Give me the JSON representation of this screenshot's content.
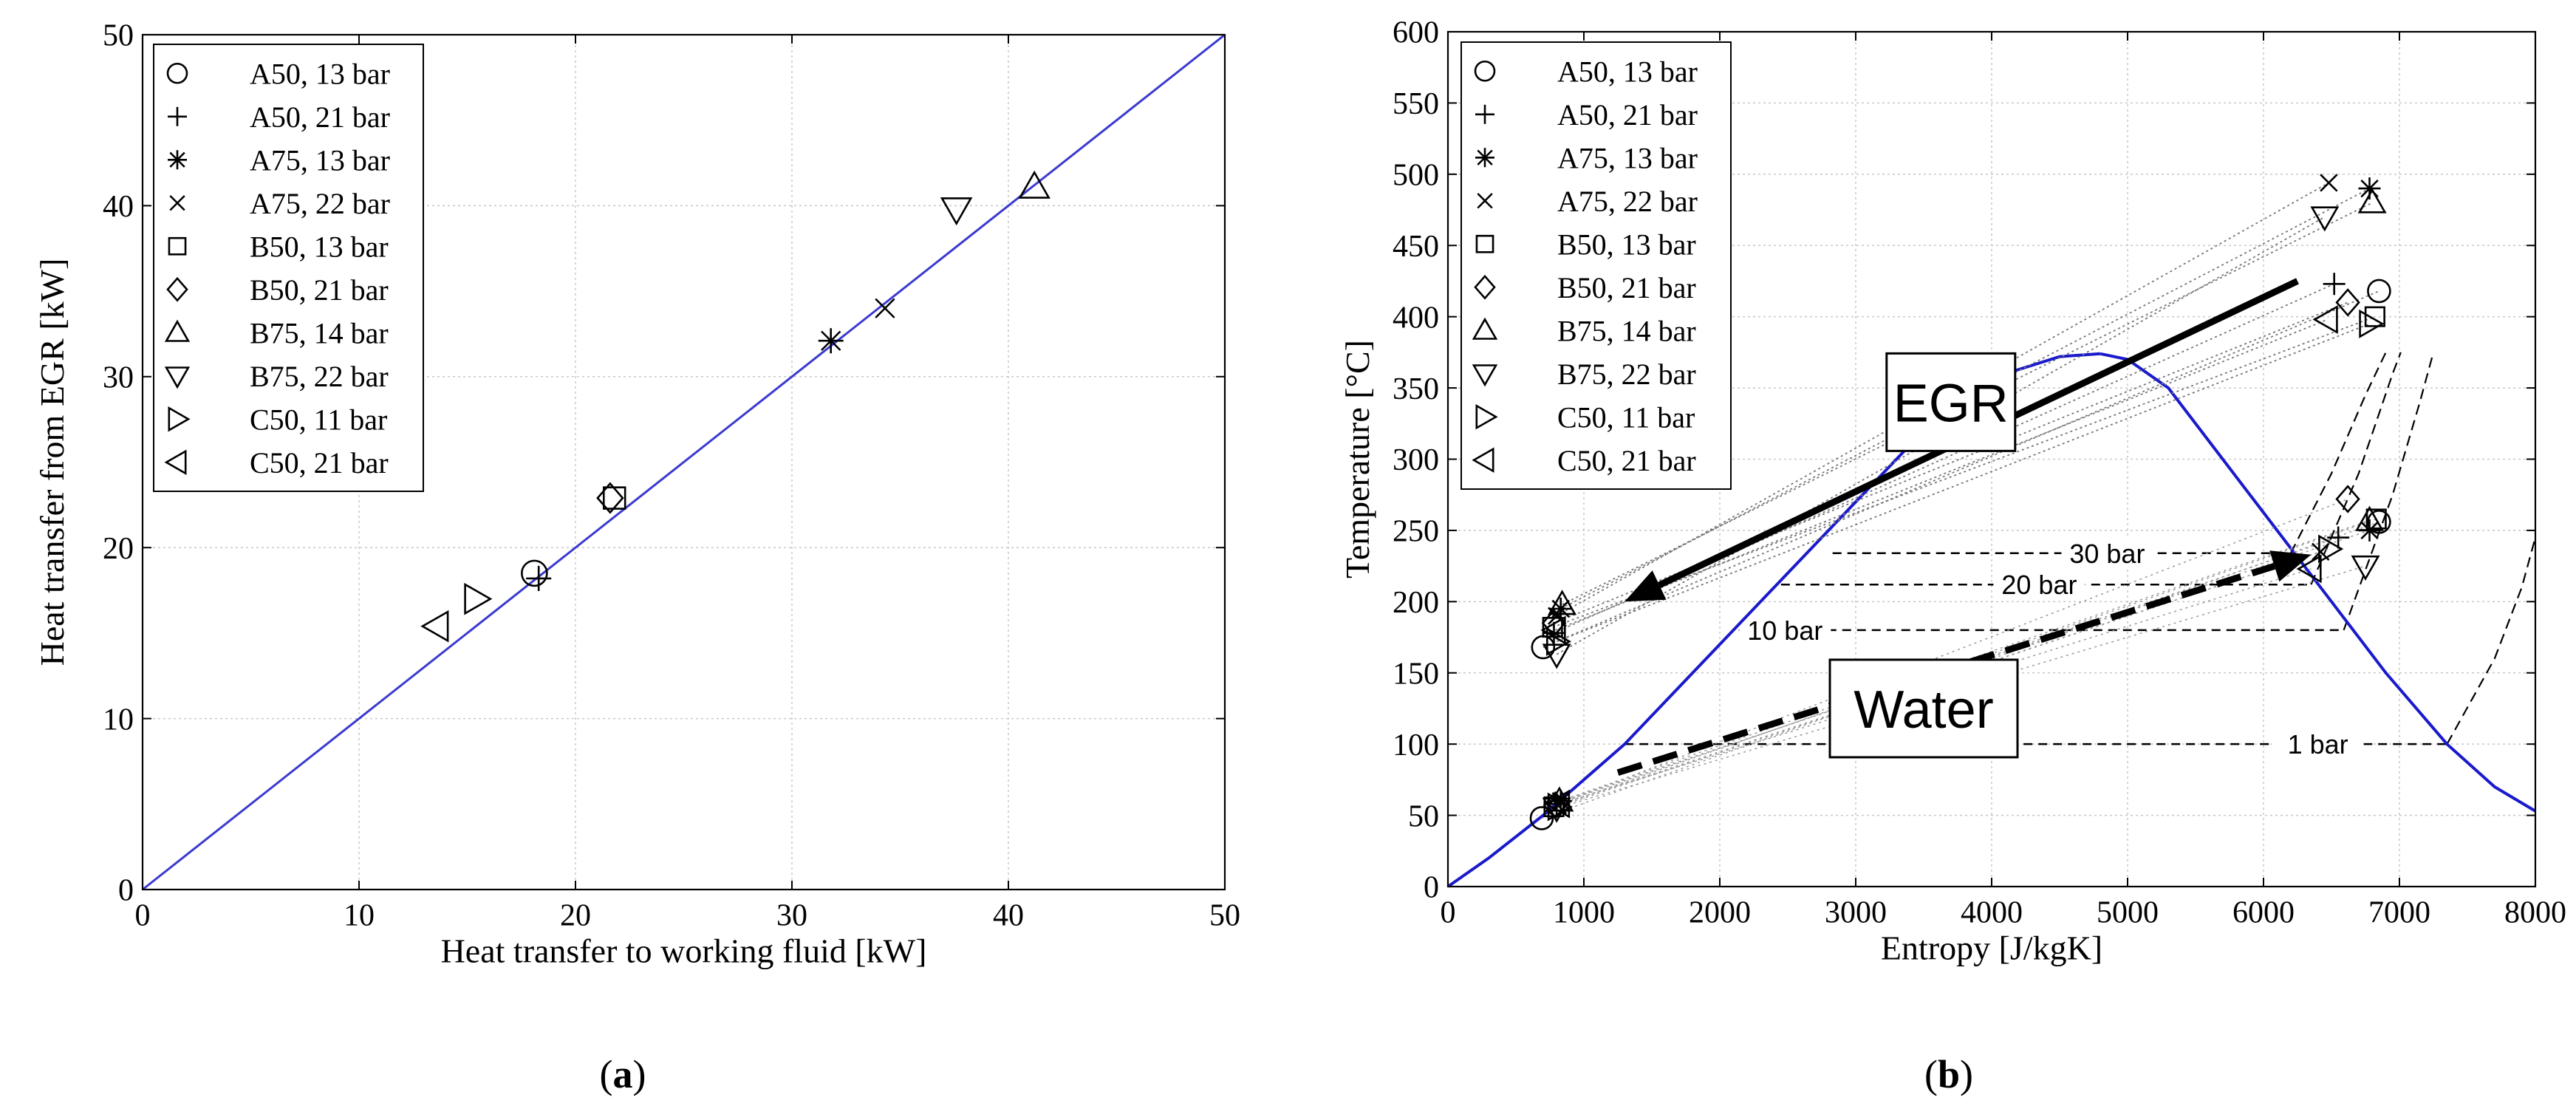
{
  "figure": {
    "panel_labels": [
      {
        "prefix": "(",
        "letter": "a",
        "suffix": ")"
      },
      {
        "prefix": "(",
        "letter": "b",
        "suffix": ")"
      }
    ]
  },
  "chart_data": [
    {
      "id": "a",
      "type": "scatter",
      "title": "",
      "xlabel": "Heat transfer to working fluid [kW]",
      "ylabel": "Heat transfer from EGR [kW]",
      "xlim": [
        0,
        50
      ],
      "ylim": [
        0,
        50
      ],
      "xticks": [
        0,
        10,
        20,
        30,
        40,
        50
      ],
      "yticks": [
        0,
        10,
        20,
        30,
        40,
        50
      ],
      "grid": true,
      "legend_position": "top-left",
      "reference_line": {
        "name": "parity line y = x",
        "color": "#3a3ad0",
        "points": [
          [
            0,
            0
          ],
          [
            50,
            50
          ]
        ]
      },
      "series": [
        {
          "name": "A50, 13 bar",
          "marker": "circle",
          "points": [
            [
              18.1,
              18.5
            ]
          ]
        },
        {
          "name": "A50, 21 bar",
          "marker": "plus",
          "points": [
            [
              18.3,
              18.2
            ]
          ]
        },
        {
          "name": "A75, 13 bar",
          "marker": "asterisk",
          "points": [
            [
              31.8,
              32.1
            ]
          ]
        },
        {
          "name": "A75, 22 bar",
          "marker": "x",
          "points": [
            [
              34.3,
              34.0
            ]
          ]
        },
        {
          "name": "B50, 13 bar",
          "marker": "square",
          "points": [
            [
              21.8,
              22.9
            ]
          ]
        },
        {
          "name": "B50, 21 bar",
          "marker": "diamond",
          "points": [
            [
              21.6,
              22.9
            ]
          ]
        },
        {
          "name": "B75, 14 bar",
          "marker": "triangle-up",
          "points": [
            [
              41.2,
              41.1
            ]
          ]
        },
        {
          "name": "B75, 22 bar",
          "marker": "triangle-down",
          "points": [
            [
              37.6,
              39.8
            ]
          ]
        },
        {
          "name": "C50, 11 bar",
          "marker": "triangle-right",
          "points": [
            [
              15.4,
              17.0
            ]
          ]
        },
        {
          "name": "C50, 21 bar",
          "marker": "triangle-left",
          "points": [
            [
              13.6,
              15.4
            ]
          ]
        }
      ]
    },
    {
      "id": "b",
      "type": "line",
      "title": "",
      "xlabel": "Entropy [J/kgK]",
      "ylabel": "Temperature [°C]",
      "xlim": [
        0,
        8000
      ],
      "ylim": [
        0,
        600
      ],
      "xticks": [
        0,
        1000,
        2000,
        3000,
        4000,
        5000,
        6000,
        7000,
        8000
      ],
      "yticks": [
        0,
        50,
        100,
        150,
        200,
        250,
        300,
        350,
        400,
        450,
        500,
        550,
        600
      ],
      "grid": true,
      "legend_position": "top-left",
      "saturation_dome": {
        "color": "#1a1acc",
        "liquid": [
          [
            0,
            0
          ],
          [
            300,
            20
          ],
          [
            700,
            50
          ],
          [
            1300,
            100
          ],
          [
            1800,
            150
          ],
          [
            2300,
            200
          ],
          [
            2800,
            250
          ],
          [
            3300,
            300
          ],
          [
            3700,
            340
          ],
          [
            4100,
            360
          ],
          [
            4500,
            372
          ],
          [
            4800,
            374
          ]
        ],
        "vapor": [
          [
            4800,
            374
          ],
          [
            5000,
            370
          ],
          [
            5300,
            350
          ],
          [
            5700,
            300
          ],
          [
            6100,
            250
          ],
          [
            6500,
            200
          ],
          [
            6900,
            150
          ],
          [
            7350,
            100
          ],
          [
            7700,
            70
          ],
          [
            8000,
            53
          ]
        ]
      },
      "isobars": [
        {
          "label": "30 bar",
          "label_s": 4850,
          "s_liquid": 2830,
          "s_vapor": 6200,
          "t_sat": 234,
          "superheat": [
            [
              6200,
              234
            ],
            [
              6500,
              290
            ],
            [
              6750,
              345
            ],
            [
              6900,
              375
            ]
          ]
        },
        {
          "label": "20 bar",
          "label_s": 4350,
          "s_liquid": 2450,
          "s_vapor": 6350,
          "t_sat": 212,
          "superheat": [
            [
              6350,
              212
            ],
            [
              6700,
              290
            ],
            [
              6950,
              360
            ],
            [
              7010,
              375
            ]
          ]
        },
        {
          "label": "10 bar",
          "label_s": 2480,
          "s_liquid": 2140,
          "s_vapor": 6590,
          "t_sat": 180,
          "superheat": [
            [
              6590,
              180
            ],
            [
              6950,
              275
            ],
            [
              7150,
              340
            ],
            [
              7250,
              375
            ]
          ]
        },
        {
          "label": "1 bar",
          "label_s": 6400,
          "s_liquid": 1300,
          "s_vapor": 7350,
          "t_sat": 100,
          "superheat": [
            [
              7350,
              100
            ],
            [
              7700,
              160
            ],
            [
              7900,
              210
            ],
            [
              8000,
              245
            ]
          ]
        }
      ],
      "annotations": [
        {
          "text": "EGR",
          "anchor": [
            3700,
            340
          ],
          "arrow_from": [
            6250,
            425
          ],
          "arrow_to": [
            1300,
            200
          ],
          "style": "solid"
        },
        {
          "text": "Water",
          "anchor": [
            3500,
            125
          ],
          "arrow_from": [
            1250,
            80
          ],
          "arrow_to": [
            6350,
            233
          ],
          "style": "dashed"
        }
      ],
      "series": [
        {
          "name": "A50, 13 bar",
          "marker": "circle",
          "points": [
            [
              700,
              168
            ],
            [
              690,
              48
            ],
            [
              6850,
              418
            ],
            [
              6850,
              256
            ]
          ]
        },
        {
          "name": "A50, 21 bar",
          "marker": "plus",
          "points": [
            [
              780,
              178
            ],
            [
              800,
              58
            ],
            [
              6520,
              423
            ],
            [
              6550,
              245
            ]
          ]
        },
        {
          "name": "A75, 13 bar",
          "marker": "asterisk",
          "points": [
            [
              830,
              195
            ],
            [
              830,
              60
            ],
            [
              6780,
              490
            ],
            [
              6780,
              250
            ]
          ]
        },
        {
          "name": "A75, 22 bar",
          "marker": "x",
          "points": [
            [
              800,
              190
            ],
            [
              810,
              57
            ],
            [
              6480,
              494
            ],
            [
              6420,
              235
            ]
          ]
        },
        {
          "name": "B50, 13 bar",
          "marker": "square",
          "points": [
            [
              770,
              182
            ],
            [
              780,
              56
            ],
            [
              6820,
              400
            ],
            [
              6830,
              258
            ]
          ]
        },
        {
          "name": "B50, 21 bar",
          "marker": "diamond",
          "points": [
            [
              780,
              185
            ],
            [
              790,
              57
            ],
            [
              6620,
              410
            ],
            [
              6620,
              272
            ]
          ]
        },
        {
          "name": "B75, 14 bar",
          "marker": "triangle-up",
          "points": [
            [
              840,
              198
            ],
            [
              820,
              60
            ],
            [
              6800,
              480
            ],
            [
              6780,
              257
            ]
          ]
        },
        {
          "name": "B75, 22 bar",
          "marker": "triangle-down",
          "points": [
            [
              800,
              163
            ],
            [
              800,
              55
            ],
            [
              6450,
              470
            ],
            [
              6750,
              225
            ]
          ]
        },
        {
          "name": "C50, 11 bar",
          "marker": "triangle-right",
          "points": [
            [
              800,
              172
            ],
            [
              810,
              56
            ],
            [
              6780,
              395
            ],
            [
              6480,
              237
            ]
          ]
        },
        {
          "name": "C50, 21 bar",
          "marker": "triangle-left",
          "points": [
            [
              790,
              180
            ],
            [
              820,
              58
            ],
            [
              6470,
              398
            ],
            [
              6350,
              223
            ]
          ]
        }
      ]
    }
  ]
}
